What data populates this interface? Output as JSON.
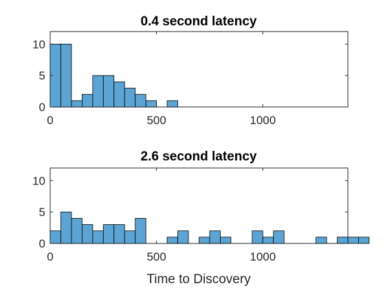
{
  "bar_color": "#5BA4D4",
  "xlabel": "Time to Discovery",
  "chart_data": [
    {
      "type": "bar",
      "title": "0.4 second latency",
      "xlabel": "",
      "ylabel": "",
      "xlim": [
        0,
        1400
      ],
      "ylim": [
        0,
        12
      ],
      "xticks": [
        0,
        500,
        1000
      ],
      "yticks": [
        0,
        5,
        10
      ],
      "bin_width": 50,
      "bin_edges_start": 0,
      "values": [
        10,
        10,
        1,
        2,
        5,
        5,
        4,
        3,
        2,
        1,
        0,
        1
      ]
    },
    {
      "type": "bar",
      "title": "2.6 second latency",
      "xlabel": "Time to Discovery",
      "ylabel": "",
      "xlim": [
        0,
        1400
      ],
      "ylim": [
        0,
        12
      ],
      "xticks": [
        0,
        500,
        1000
      ],
      "yticks": [
        0,
        5,
        10
      ],
      "bin_width": 50,
      "bin_edges_start": 0,
      "values": [
        2,
        5,
        4,
        3,
        2,
        3,
        3,
        2,
        4,
        0,
        0,
        1,
        2,
        0,
        1,
        2,
        1,
        0,
        0,
        2,
        1,
        2,
        0,
        0,
        0,
        1,
        0,
        1,
        1,
        1
      ]
    }
  ]
}
